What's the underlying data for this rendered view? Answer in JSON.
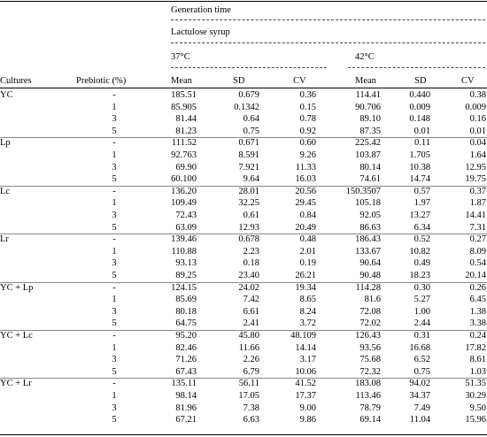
{
  "header": {
    "generation_time": "Generation time",
    "lactulose": "Lactulose syrup",
    "temp_37": "37°C",
    "temp_42": "42°C",
    "cultures": "Cultures",
    "prebiotic": "Prebiotic (%)",
    "mean": "Mean",
    "sd": "SD",
    "cv": "CV"
  },
  "groups": [
    {
      "culture": "YC",
      "rows": [
        [
          "-",
          "185.51",
          "0.679",
          "0.36",
          "114.41",
          "0.440",
          "0.38"
        ],
        [
          "1",
          "85.905",
          "0.1342",
          "0.15",
          "90.706",
          "0.009",
          "0.009"
        ],
        [
          "3",
          "81.44",
          "0.64",
          "0.78",
          "89.10",
          "0.148",
          "0.16"
        ],
        [
          "5",
          "81.23",
          "0.75",
          "0.92",
          "87.35",
          "0.01",
          "0.01"
        ]
      ]
    },
    {
      "culture": "Lp",
      "rows": [
        [
          "-",
          "111.52",
          "0.671",
          "0.60",
          "225.42",
          "0.11",
          "0.04"
        ],
        [
          "1",
          "92.763",
          "8.591",
          "9.26",
          "103.87",
          "1.705",
          "1.64"
        ],
        [
          "3",
          "69.90",
          "7.921",
          "11.33",
          "80.14",
          "10.38",
          "12.95"
        ],
        [
          "5",
          "60.100",
          "9.64",
          "16.03",
          "74.61",
          "14.74",
          "19.75"
        ]
      ]
    },
    {
      "culture": "Lc",
      "rows": [
        [
          "-",
          "136.20",
          "28.01",
          "20.56",
          "150.3507",
          "0.57",
          "0.37"
        ],
        [
          "1",
          "109.49",
          "32.25",
          "29.45",
          "105.18",
          "1.97",
          "1.87"
        ],
        [
          "3",
          "72.43",
          "0.61",
          "0.84",
          "92.05",
          "13.27",
          "14.41"
        ],
        [
          "5",
          "63.09",
          "12.93",
          "20.49",
          "86.63",
          "6.34",
          "7.31"
        ]
      ]
    },
    {
      "culture": "Lr",
      "rows": [
        [
          "-",
          "139.46",
          "0.678",
          "0.48",
          "186.43",
          "0.52",
          "0.27"
        ],
        [
          "1",
          "110.88",
          "2.23",
          "2.01",
          "133.67",
          "10.82",
          "8.09"
        ],
        [
          "3",
          "93.13",
          "0.18",
          "0.19",
          "90.64",
          "0.49",
          "0.54"
        ],
        [
          "5",
          "89.25",
          "23.40",
          "26.21",
          "90.48",
          "18.23",
          "20.14"
        ]
      ]
    },
    {
      "culture": "YC + Lp",
      "rows": [
        [
          "-",
          "124.15",
          "24.02",
          "19.34",
          "114.28",
          "0.30",
          "0.26"
        ],
        [
          "1",
          "85.69",
          "7.42",
          "8.65",
          "81.6",
          "5.27",
          "6.45"
        ],
        [
          "3",
          "80.18",
          "6.61",
          "8.24",
          "72.08",
          "1.00",
          "1.38"
        ],
        [
          "5",
          "64.75",
          "2.41",
          "3.72",
          "72.02",
          "2.44",
          "3.38"
        ]
      ]
    },
    {
      "culture": "YC + Lc",
      "rows": [
        [
          "-",
          "95.20",
          "45.80",
          "48.109",
          "126.43",
          "0.31",
          "0.24"
        ],
        [
          "1",
          "82.46",
          "11.66",
          "14.14",
          "93.56",
          "16.68",
          "17.82"
        ],
        [
          "3",
          "71.26",
          "2.26",
          "3.17",
          "75.68",
          "6.52",
          "8.61"
        ],
        [
          "5",
          "67.43",
          "6.79",
          "10.06",
          "72.32",
          "0.75",
          "1.03"
        ]
      ]
    },
    {
      "culture": "YC + Lr",
      "rows": [
        [
          "-",
          "135.11",
          "56.11",
          "41.52",
          "183.08",
          "94.02",
          "51.35"
        ],
        [
          "1",
          "98.14",
          "17.05",
          "17.37",
          "113.46",
          "34.37",
          "30.29"
        ],
        [
          "3",
          "81.96",
          "7.38",
          "9.00",
          "78.79",
          "7.49",
          "9.50"
        ],
        [
          "5",
          "67.21",
          "6.63",
          "9.86",
          "69.14",
          "11.04",
          "15.96"
        ]
      ]
    }
  ]
}
